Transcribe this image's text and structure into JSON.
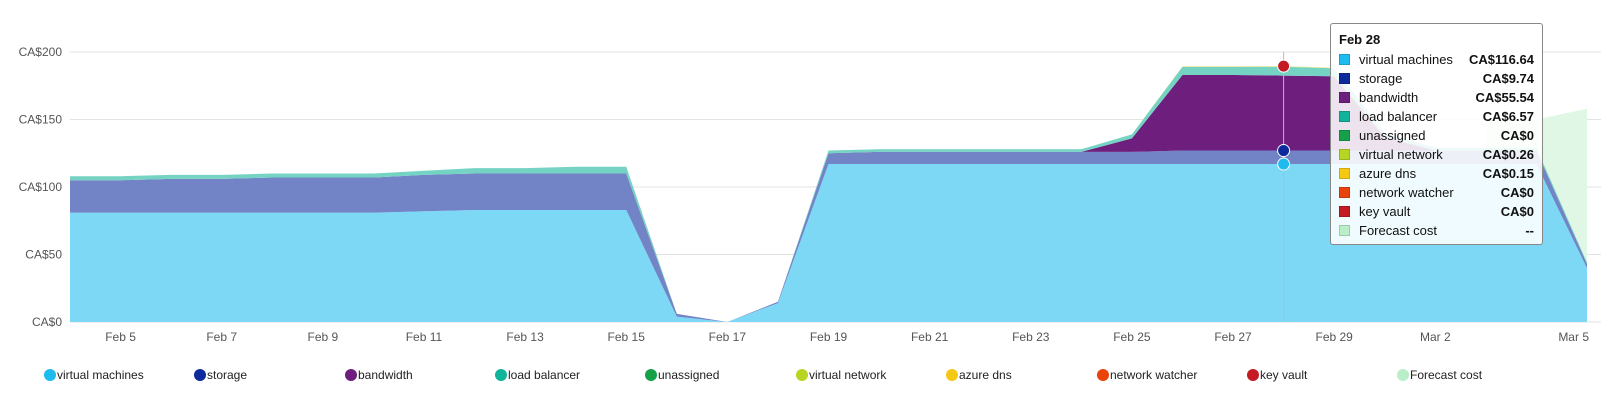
{
  "chart_data": {
    "type": "area",
    "stacked": true,
    "x": [
      "Feb 4",
      "Feb 5",
      "Feb 6",
      "Feb 7",
      "Feb 8",
      "Feb 9",
      "Feb 10",
      "Feb 11",
      "Feb 12",
      "Feb 13",
      "Feb 14",
      "Feb 15",
      "Feb 16",
      "Feb 17",
      "Feb 18",
      "Feb 19",
      "Feb 20",
      "Feb 21",
      "Feb 22",
      "Feb 23",
      "Feb 24",
      "Feb 25",
      "Feb 26",
      "Feb 27",
      "Feb 28",
      "Feb 29",
      "Mar 1",
      "Mar 2",
      "Mar 3",
      "Mar 4",
      "Mar 5"
    ],
    "x_tick_labels": [
      "Feb 5",
      "Feb 7",
      "Feb 9",
      "Feb 11",
      "Feb 13",
      "Feb 15",
      "Feb 17",
      "Feb 19",
      "Feb 21",
      "Feb 23",
      "Feb 25",
      "Feb 27",
      "Feb 29",
      "Mar 2",
      "Mar 5"
    ],
    "y_tick_labels": [
      "CA$0",
      "CA$50",
      "CA$100",
      "CA$150",
      "CA$200"
    ],
    "ylim": [
      0,
      200
    ],
    "grid": true,
    "legend_position": "bottom",
    "series": [
      {
        "name": "virtual machines",
        "color": "#1ebbee",
        "values": [
          81,
          81,
          81,
          81,
          81,
          81,
          81,
          82,
          83,
          83,
          83,
          83,
          4,
          0,
          14,
          117,
          117,
          117,
          117,
          117,
          117,
          117,
          117,
          117,
          117,
          117,
          117,
          117,
          117,
          117,
          40
        ]
      },
      {
        "name": "storage",
        "color": "#0c2a9c",
        "values": [
          24,
          24,
          25,
          25,
          26,
          26,
          26,
          27,
          27,
          27,
          27,
          27,
          2,
          0,
          1,
          8,
          9,
          9,
          9,
          9,
          9,
          9,
          10,
          10,
          10,
          10,
          10,
          10,
          10,
          10,
          3
        ]
      },
      {
        "name": "bandwidth",
        "color": "#6e1e7d",
        "values": [
          0,
          0,
          0,
          0,
          0,
          0,
          0,
          0,
          0,
          0,
          0,
          0,
          0,
          0,
          0,
          0,
          0,
          0,
          0,
          0,
          0,
          10,
          56,
          56,
          55.54,
          55,
          10,
          0,
          0,
          0,
          0
        ]
      },
      {
        "name": "load balancer",
        "color": "#11b39a",
        "values": [
          3,
          3,
          3,
          3,
          3,
          3,
          3,
          3,
          4,
          4,
          5,
          5,
          0,
          0,
          0,
          2,
          2,
          2,
          2,
          2,
          2,
          3,
          6,
          6,
          6.57,
          6,
          3,
          2,
          2,
          2,
          1
        ]
      },
      {
        "name": "unassigned",
        "color": "#15a04a",
        "values": [
          0,
          0,
          0,
          0,
          0,
          0,
          0,
          0,
          0,
          0,
          0,
          0,
          0,
          0,
          0,
          0,
          0,
          0,
          0,
          0,
          0,
          0,
          0,
          0,
          0,
          0,
          0,
          0,
          0,
          0,
          0
        ]
      },
      {
        "name": "virtual network",
        "color": "#b6d623",
        "values": [
          0,
          0,
          0,
          0,
          0,
          0,
          0,
          0,
          0,
          0,
          0,
          0,
          0,
          0,
          0,
          0,
          0,
          0,
          0,
          0,
          0,
          0,
          0.26,
          0.26,
          0.26,
          0.26,
          0,
          0,
          0,
          0,
          0
        ]
      },
      {
        "name": "azure dns",
        "color": "#f5c814",
        "values": [
          0,
          0,
          0,
          0,
          0,
          0,
          0,
          0,
          0,
          0,
          0,
          0,
          0,
          0,
          0,
          0,
          0,
          0,
          0,
          0,
          0,
          0,
          0.15,
          0.15,
          0.15,
          0.15,
          0,
          0,
          0,
          0,
          0
        ]
      },
      {
        "name": "network watcher",
        "color": "#e8430a",
        "values": [
          0,
          0,
          0,
          0,
          0,
          0,
          0,
          0,
          0,
          0,
          0,
          0,
          0,
          0,
          0,
          0,
          0,
          0,
          0,
          0,
          0,
          0,
          0,
          0,
          0,
          0,
          0,
          0,
          0,
          0,
          0
        ]
      },
      {
        "name": "key vault",
        "color": "#c41a24",
        "values": [
          0,
          0,
          0,
          0,
          0,
          0,
          0,
          0,
          0,
          0,
          0,
          0,
          0,
          0,
          0,
          0,
          0,
          0,
          0,
          0,
          0,
          0,
          0,
          0,
          0,
          0,
          0,
          0,
          0,
          0,
          0
        ]
      }
    ],
    "forecast": {
      "name": "Forecast cost",
      "color": "#b9eec8",
      "x": [
        "Mar 3",
        "Mar 4",
        "Mar 5"
      ],
      "values": [
        150,
        150,
        158
      ]
    }
  },
  "tooltip": {
    "date": "Feb 28",
    "rows": [
      {
        "name": "virtual machines",
        "value": "CA$116.64",
        "color": "#1ebbee"
      },
      {
        "name": "storage",
        "value": "CA$9.74",
        "color": "#0c2a9c"
      },
      {
        "name": "bandwidth",
        "value": "CA$55.54",
        "color": "#6e1e7d"
      },
      {
        "name": "load balancer",
        "value": "CA$6.57",
        "color": "#11b39a"
      },
      {
        "name": "unassigned",
        "value": "CA$0",
        "color": "#15a04a"
      },
      {
        "name": "virtual network",
        "value": "CA$0.26",
        "color": "#b6d623"
      },
      {
        "name": "azure dns",
        "value": "CA$0.15",
        "color": "#f5c814"
      },
      {
        "name": "network watcher",
        "value": "CA$0",
        "color": "#e8430a"
      },
      {
        "name": "key vault",
        "value": "CA$0",
        "color": "#c41a24"
      },
      {
        "name": "Forecast cost",
        "value": "--",
        "color": "#b9eec8"
      }
    ]
  },
  "legend": [
    {
      "name": "virtual machines",
      "color": "#1ebbee"
    },
    {
      "name": "storage",
      "color": "#0c2a9c"
    },
    {
      "name": "bandwidth",
      "color": "#6e1e7d"
    },
    {
      "name": "load balancer",
      "color": "#11b39a"
    },
    {
      "name": "unassigned",
      "color": "#15a04a"
    },
    {
      "name": "virtual network",
      "color": "#b6d623"
    },
    {
      "name": "azure dns",
      "color": "#f5c814"
    },
    {
      "name": "network watcher",
      "color": "#e8430a"
    },
    {
      "name": "key vault",
      "color": "#c41a24"
    },
    {
      "name": "Forecast cost",
      "color": "#b9eec8"
    }
  ]
}
